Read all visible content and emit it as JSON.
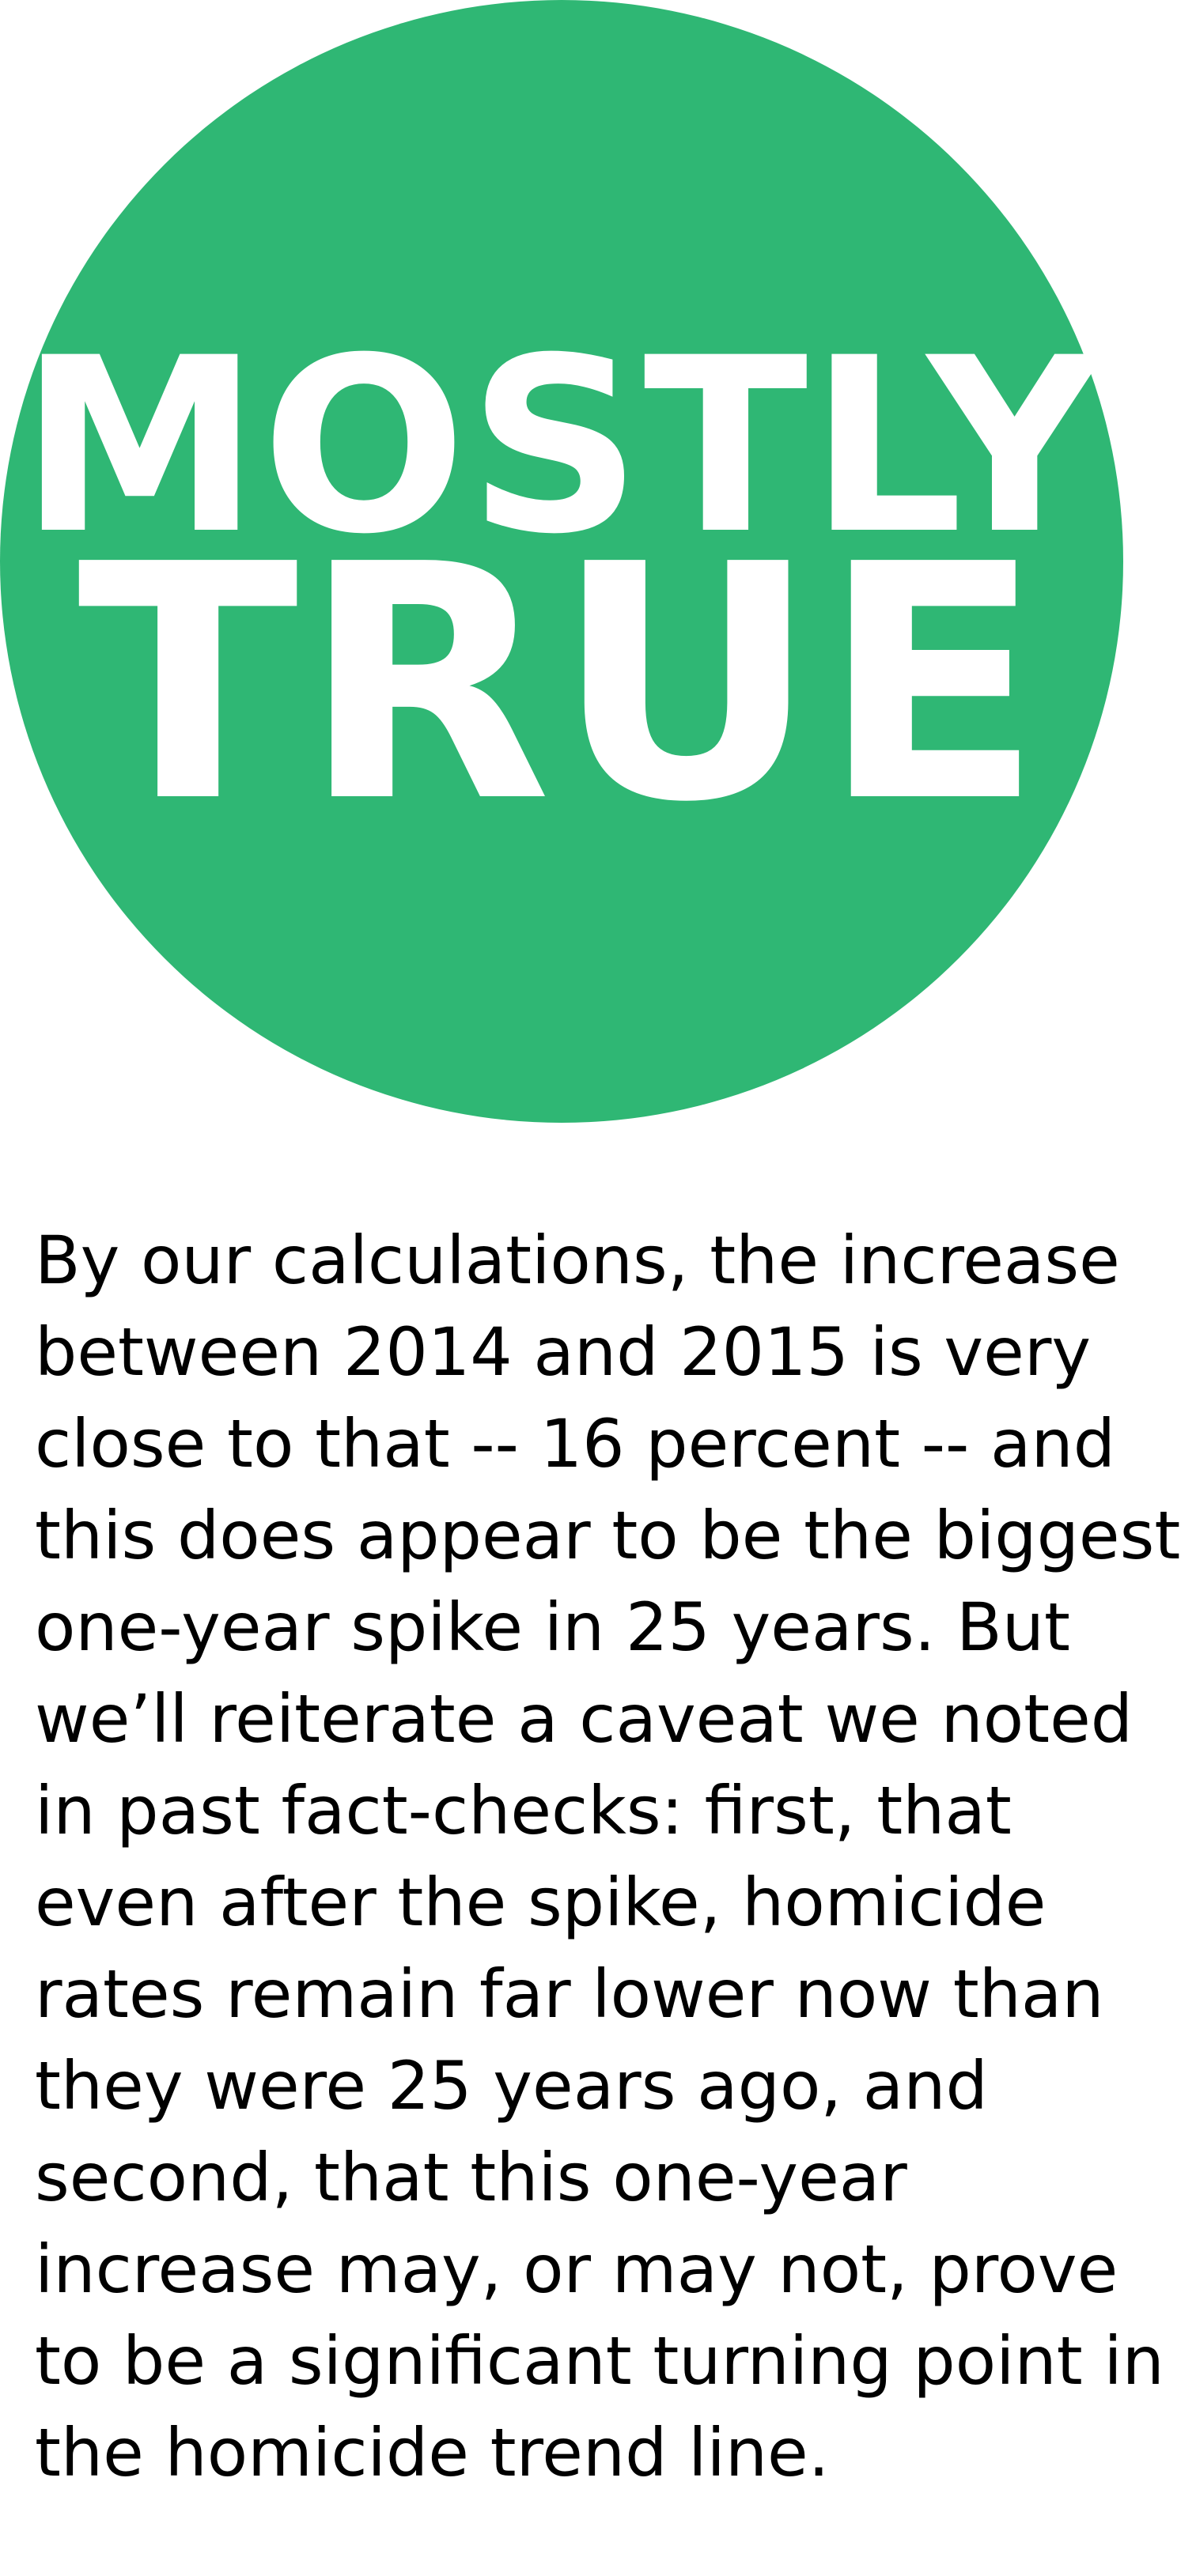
{
  "badge": {
    "line1": "MOSTLY",
    "line2": "TRUE",
    "color": "#2fb774",
    "text_color": "#ffffff"
  },
  "verdict": {
    "text": "By our calculations, the increase\nbetween 2014 and 2015 is very\nclose to that -- 16 percent -- and\nthis does appear to be the biggest\none-year spike in 25 years. But\nwe’ll reiterate a caveat we noted\nin past fact-checks: first, that\neven after the spike, homicide\nrates remain far lower now than\nthey were 25 years ago, and\nsecond, that this one-year\nincrease may, or may not, prove\nto be a significant turning point in\nthe homicide trend line."
  }
}
